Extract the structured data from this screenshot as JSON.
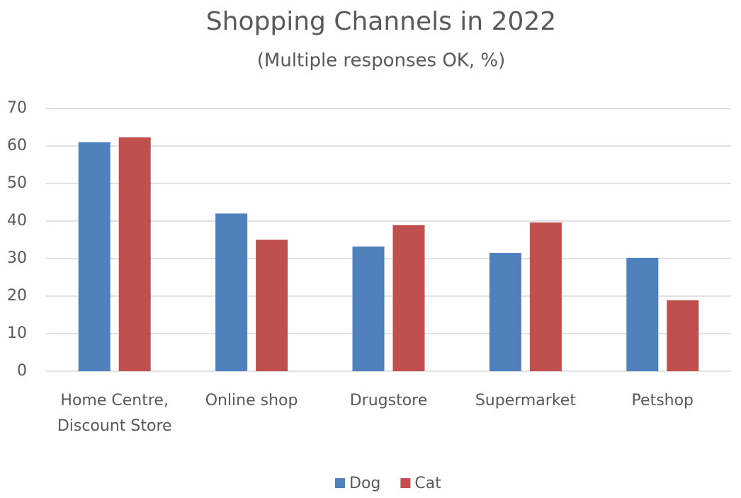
{
  "chart_data": {
    "type": "bar",
    "title": "Shopping Channels in 2022",
    "subtitle": "(Multiple responses OK, %)",
    "categories": [
      "Home Centre, Discount Store",
      "Online shop",
      "Drugstore",
      "Supermarket",
      "Petshop"
    ],
    "series": [
      {
        "name": "Dog",
        "color": "#4f81bd",
        "values": [
          61,
          42,
          33.2,
          31.5,
          30.2
        ]
      },
      {
        "name": "Cat",
        "color": "#c0504d",
        "values": [
          62.3,
          35,
          38.9,
          39.6,
          18.9
        ]
      }
    ],
    "ylim": [
      0,
      70
    ],
    "yticks": [
      0,
      10,
      20,
      30,
      40,
      50,
      60,
      70
    ],
    "grid": true,
    "legend": "bottom"
  }
}
